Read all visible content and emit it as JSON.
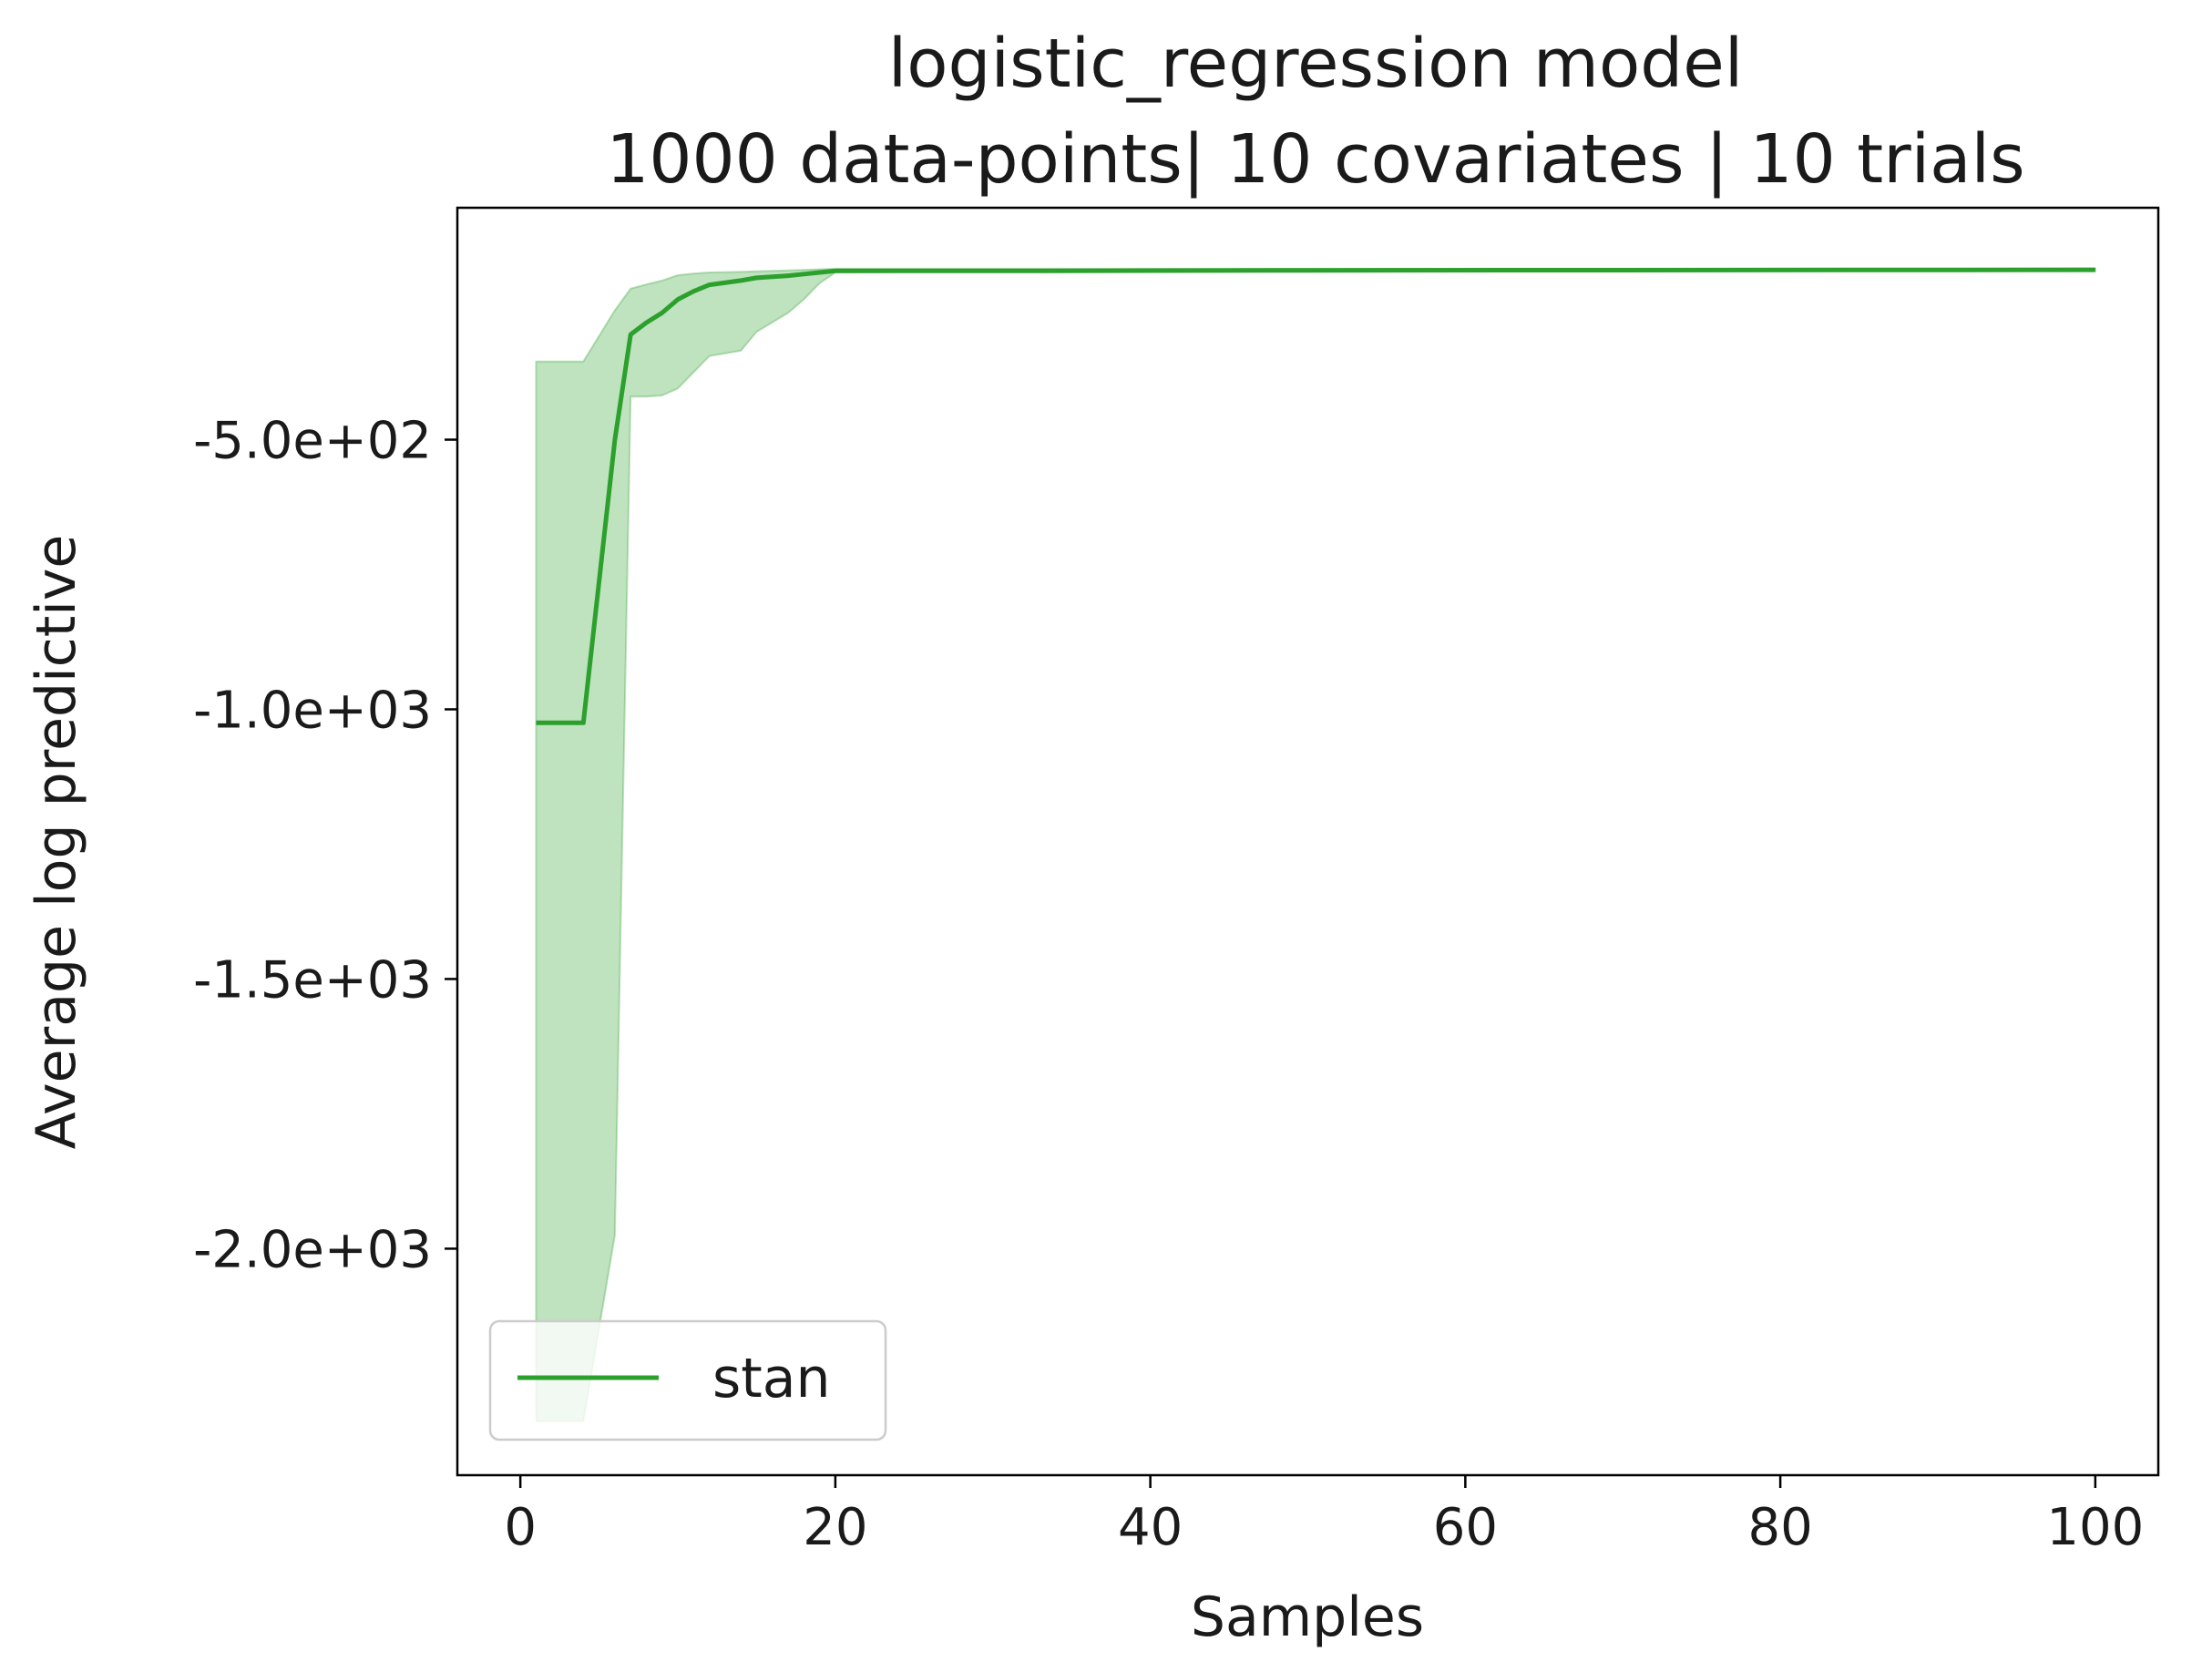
{
  "chart_data": {
    "type": "line",
    "title_lines": [
      "logistic_regression model",
      "1000 data-points| 10 covariates | 10 trials"
    ],
    "xlabel": "Samples",
    "ylabel": "Average log predictive",
    "xlim": [
      -4,
      104
    ],
    "ylim": [
      -2420,
      -70
    ],
    "x_ticks": [
      0,
      20,
      40,
      60,
      80,
      100
    ],
    "x_tick_labels": [
      "0",
      "20",
      "40",
      "60",
      "80",
      "100"
    ],
    "y_ticks": [
      -500,
      -1000,
      -1500,
      -2000
    ],
    "y_tick_labels": [
      "-5.0e+02",
      "-1.0e+03",
      "-1.5e+03",
      "-2.0e+03"
    ],
    "grid": false,
    "legend": {
      "position": "lower-left",
      "entries": [
        "stan"
      ]
    },
    "series": [
      {
        "name": "stan",
        "color": "#2ca02c",
        "band_color": "#2ca02c",
        "x": [
          1,
          4,
          6,
          7,
          8,
          9,
          10,
          11,
          12,
          14,
          15,
          17,
          18,
          19,
          20,
          25,
          30,
          50,
          100
        ],
        "y": [
          -1025,
          -1025,
          -500,
          -305,
          -283,
          -265,
          -240,
          -225,
          -213,
          -205,
          -200,
          -196,
          -193,
          -190,
          -187,
          -187,
          -187,
          -186,
          -185
        ],
        "lower": [
          -2320,
          -2320,
          -1975,
          -420,
          -420,
          -418,
          -405,
          -375,
          -345,
          -335,
          -300,
          -265,
          -240,
          -210,
          -190,
          -189,
          -189,
          -188,
          -187
        ],
        "upper": [
          -355,
          -355,
          -260,
          -220,
          -212,
          -205,
          -195,
          -192,
          -190,
          -189,
          -188,
          -186,
          -185,
          -184,
          -183,
          -183,
          -183,
          -183,
          -183
        ]
      }
    ]
  }
}
